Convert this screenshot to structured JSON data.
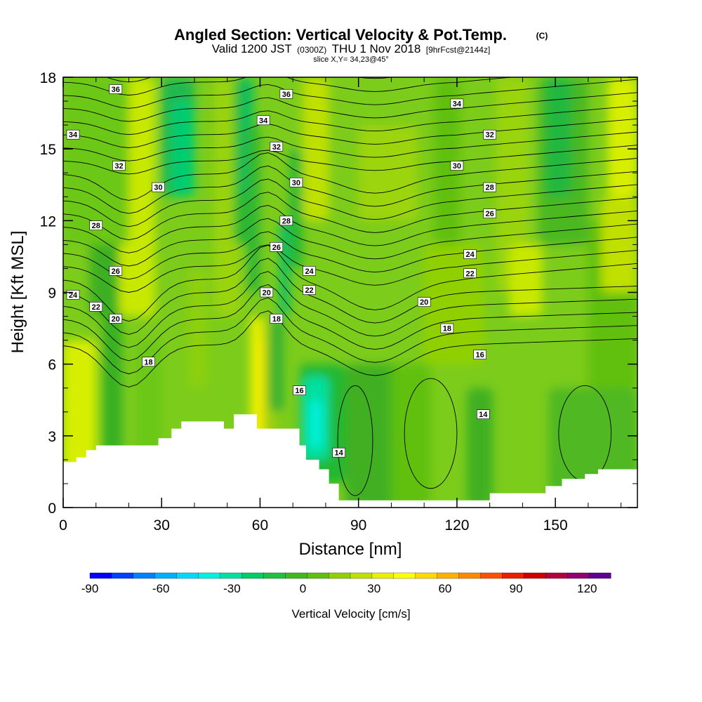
{
  "title": {
    "main": "Angled Section: Vertical Velocity & Pot.Temp.",
    "main_unit": "(C)",
    "valid_prefix": "Valid 1200 JST",
    "valid_utc": "(0300Z)",
    "valid_date": "THU 1 Nov 2018",
    "valid_fcst": "[9hrFcst@2144z]",
    "slice": "slice X,Y= 34,23@45°"
  },
  "chart_data": {
    "type": "heatmap",
    "x_axis": {
      "label": "Distance [nm]",
      "range": [
        0,
        175
      ],
      "ticks": [
        0,
        30,
        60,
        90,
        120,
        150
      ],
      "tick_labels": [
        "0",
        "30",
        "60",
        "90",
        "120",
        "150"
      ]
    },
    "y_axis": {
      "label": "Height [Kft MSL]",
      "range": [
        0,
        18
      ],
      "ticks": [
        0,
        3,
        6,
        9,
        12,
        15,
        18
      ],
      "tick_labels": [
        "0",
        "3",
        "6",
        "9",
        "12",
        "15",
        "18"
      ]
    },
    "terrain_kft": [
      [
        0,
        1.9
      ],
      [
        4,
        2.1
      ],
      [
        7,
        2.4
      ],
      [
        10,
        2.6
      ],
      [
        20,
        2.6
      ],
      [
        25,
        2.6
      ],
      [
        29,
        2.9
      ],
      [
        33,
        3.3
      ],
      [
        36,
        3.6
      ],
      [
        45,
        3.6
      ],
      [
        49,
        3.3
      ],
      [
        52,
        3.9
      ],
      [
        58,
        3.9
      ],
      [
        59,
        3.3
      ],
      [
        70,
        3.3
      ],
      [
        72,
        2.6
      ],
      [
        74,
        2.0
      ],
      [
        78,
        1.6
      ],
      [
        81,
        1.0
      ],
      [
        84,
        0.3
      ],
      [
        124,
        0.3
      ],
      [
        130,
        0.6
      ],
      [
        143,
        0.6
      ],
      [
        147,
        0.9
      ],
      [
        152,
        1.2
      ],
      [
        159,
        1.4
      ],
      [
        163,
        1.6
      ],
      [
        175,
        1.6
      ]
    ],
    "isentropes_label": "Pot.Temp. (C)",
    "isentrope_labels": [
      {
        "value": "36",
        "x": 16,
        "y": 17.5
      },
      {
        "value": "36",
        "x": 68,
        "y": 17.3
      },
      {
        "value": "34",
        "x": 3,
        "y": 15.6
      },
      {
        "value": "34",
        "x": 61,
        "y": 16.2
      },
      {
        "value": "34",
        "x": 120,
        "y": 16.9
      },
      {
        "value": "32",
        "x": 17,
        "y": 14.3
      },
      {
        "value": "32",
        "x": 65,
        "y": 15.1
      },
      {
        "value": "32",
        "x": 130,
        "y": 15.6
      },
      {
        "value": "30",
        "x": 29,
        "y": 13.4
      },
      {
        "value": "30",
        "x": 71,
        "y": 13.6
      },
      {
        "value": "30",
        "x": 120,
        "y": 14.3
      },
      {
        "value": "28",
        "x": 10,
        "y": 11.8
      },
      {
        "value": "28",
        "x": 68,
        "y": 12.0
      },
      {
        "value": "28",
        "x": 130,
        "y": 13.4
      },
      {
        "value": "26",
        "x": 16,
        "y": 9.9
      },
      {
        "value": "26",
        "x": 65,
        "y": 10.9
      },
      {
        "value": "26",
        "x": 130,
        "y": 12.3
      },
      {
        "value": "24",
        "x": 3,
        "y": 8.9
      },
      {
        "value": "24",
        "x": 75,
        "y": 9.9
      },
      {
        "value": "24",
        "x": 124,
        "y": 10.6
      },
      {
        "value": "22",
        "x": 10,
        "y": 8.4
      },
      {
        "value": "22",
        "x": 75,
        "y": 9.1
      },
      {
        "value": "22",
        "x": 124,
        "y": 9.8
      },
      {
        "value": "20",
        "x": 16,
        "y": 7.9
      },
      {
        "value": "20",
        "x": 62,
        "y": 9.0
      },
      {
        "value": "20",
        "x": 110,
        "y": 8.6
      },
      {
        "value": "18",
        "x": 26,
        "y": 6.1
      },
      {
        "value": "18",
        "x": 65,
        "y": 7.9
      },
      {
        "value": "18",
        "x": 117,
        "y": 7.5
      },
      {
        "value": "16",
        "x": 72,
        "y": 4.9
      },
      {
        "value": "16",
        "x": 127,
        "y": 6.4
      },
      {
        "value": "14",
        "x": 84,
        "y": 2.3
      },
      {
        "value": "14",
        "x": 128,
        "y": 3.9
      }
    ],
    "colorbar": {
      "label": "Vertical Velocity [cm/s]",
      "tick_labels": [
        "-90",
        "-60",
        "-30",
        "0",
        "30",
        "60",
        "90",
        "120"
      ],
      "ticks": [
        -90,
        -60,
        -30,
        0,
        30,
        60,
        90,
        120
      ],
      "range": [
        -90,
        130
      ],
      "colors": [
        "#0000ff",
        "#0040ff",
        "#0080ff",
        "#00b0ff",
        "#00d8ff",
        "#00f0e0",
        "#00e0a0",
        "#00cc66",
        "#20c040",
        "#40b820",
        "#60c010",
        "#90d000",
        "#c0e000",
        "#e8f000",
        "#ffff00",
        "#ffd800",
        "#ffb000",
        "#ff8800",
        "#ff5000",
        "#e82000",
        "#d00000",
        "#b00040",
        "#900070",
        "#600090"
      ]
    }
  }
}
